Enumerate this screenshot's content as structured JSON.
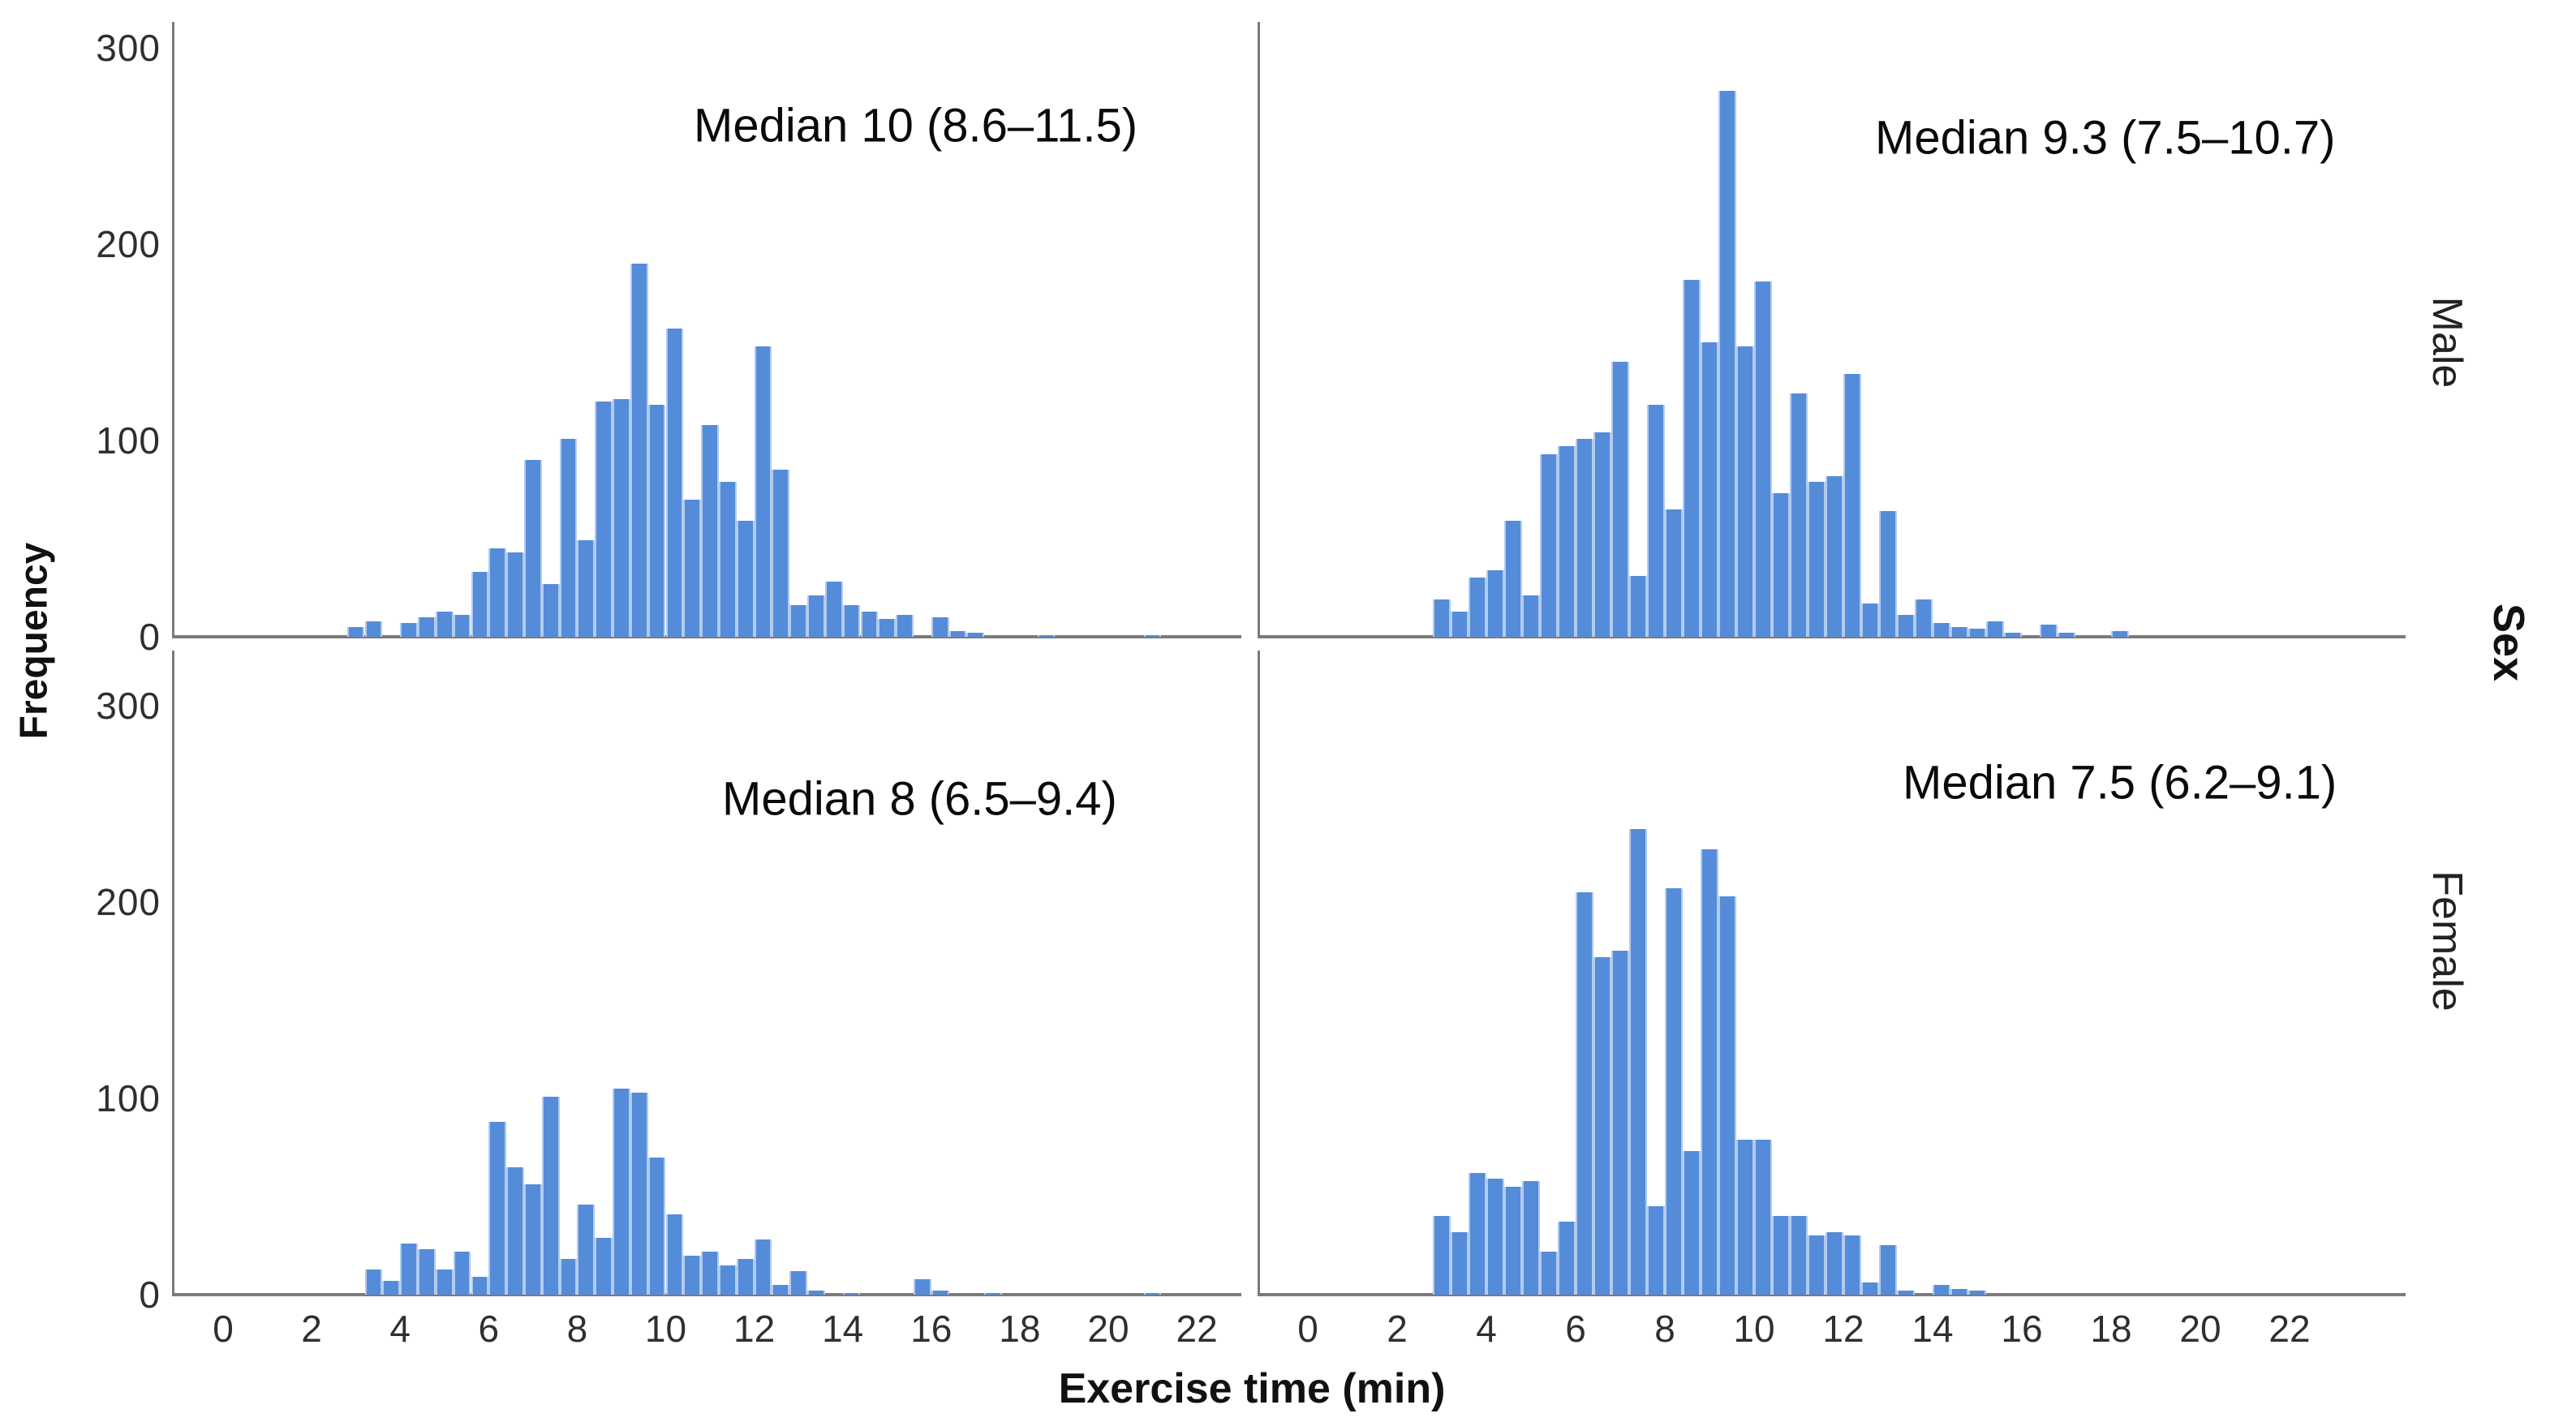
{
  "figure": {
    "background": "#ffffff",
    "bar_color": "#558CD9",
    "bar_divider_color": "rgba(255,255,255,0.55)",
    "axis_line_color": "#7b7b7b",
    "tick_text_color": "#2f2f2f"
  },
  "chart_data": {
    "type": "bar",
    "subtype": "faceted-histogram",
    "title": "",
    "xlabel": "Exercise time (min)",
    "ylabel": "Frequency",
    "facet_variable": "Sex",
    "row_labels": [
      "Male",
      "Female"
    ],
    "x_ticks": [
      0,
      2,
      4,
      6,
      8,
      10,
      12,
      14,
      16,
      18,
      20,
      22
    ],
    "y_ticks": [
      0,
      100,
      200,
      300
    ],
    "ylim": [
      0,
      313
    ],
    "xlim": [
      -1.1,
      23.2
    ],
    "bin_width": 0.4,
    "grid": "off",
    "legend": "none",
    "panels": [
      {
        "name": "top-left",
        "row": "Male",
        "annotation": "Median 10 (8.6–11.5)",
        "bins": [
          [
            3.0,
            5
          ],
          [
            3.4,
            8
          ],
          [
            4.2,
            7
          ],
          [
            4.6,
            10
          ],
          [
            5.0,
            13
          ],
          [
            5.4,
            11
          ],
          [
            5.8,
            33
          ],
          [
            6.2,
            45
          ],
          [
            6.6,
            43
          ],
          [
            7.0,
            90
          ],
          [
            7.4,
            27
          ],
          [
            7.8,
            101
          ],
          [
            8.2,
            49
          ],
          [
            8.6,
            120
          ],
          [
            9.0,
            121
          ],
          [
            9.4,
            190
          ],
          [
            9.8,
            118
          ],
          [
            10.2,
            157
          ],
          [
            10.6,
            70
          ],
          [
            11.0,
            108
          ],
          [
            11.4,
            79
          ],
          [
            11.8,
            59
          ],
          [
            12.2,
            148
          ],
          [
            12.6,
            85
          ],
          [
            13.0,
            16
          ],
          [
            13.4,
            21
          ],
          [
            13.8,
            28
          ],
          [
            14.2,
            16
          ],
          [
            14.6,
            13
          ],
          [
            15.0,
            9
          ],
          [
            15.4,
            11
          ],
          [
            16.2,
            10
          ],
          [
            16.6,
            3
          ],
          [
            17.0,
            2
          ],
          [
            18.6,
            1
          ],
          [
            21.0,
            1
          ]
        ]
      },
      {
        "name": "top-right",
        "row": "Male",
        "annotation": "Median 9.3 (7.5–10.7)",
        "bins": [
          [
            3.0,
            19
          ],
          [
            3.4,
            13
          ],
          [
            3.8,
            30
          ],
          [
            4.2,
            34
          ],
          [
            4.6,
            59
          ],
          [
            5.0,
            21
          ],
          [
            5.4,
            93
          ],
          [
            5.8,
            97
          ],
          [
            6.2,
            101
          ],
          [
            6.6,
            104
          ],
          [
            7.0,
            140
          ],
          [
            7.4,
            31
          ],
          [
            7.8,
            118
          ],
          [
            8.2,
            65
          ],
          [
            8.6,
            182
          ],
          [
            9.0,
            150
          ],
          [
            9.4,
            278
          ],
          [
            9.8,
            148
          ],
          [
            10.2,
            181
          ],
          [
            10.6,
            73
          ],
          [
            11.0,
            124
          ],
          [
            11.4,
            79
          ],
          [
            11.8,
            82
          ],
          [
            12.2,
            134
          ],
          [
            12.6,
            17
          ],
          [
            13.0,
            64
          ],
          [
            13.4,
            11
          ],
          [
            13.8,
            19
          ],
          [
            14.2,
            7
          ],
          [
            14.6,
            5
          ],
          [
            15.0,
            4
          ],
          [
            15.4,
            8
          ],
          [
            15.8,
            2
          ],
          [
            16.6,
            6
          ],
          [
            17.0,
            2
          ],
          [
            18.2,
            3
          ]
        ]
      },
      {
        "name": "bottom-left",
        "row": "Female",
        "annotation": "Median 8 (6.5–9.4)",
        "bins": [
          [
            3.4,
            13
          ],
          [
            3.8,
            7
          ],
          [
            4.2,
            26
          ],
          [
            4.6,
            23
          ],
          [
            5.0,
            13
          ],
          [
            5.4,
            22
          ],
          [
            5.8,
            9
          ],
          [
            6.2,
            88
          ],
          [
            6.6,
            65
          ],
          [
            7.0,
            56
          ],
          [
            7.4,
            101
          ],
          [
            7.8,
            18
          ],
          [
            8.2,
            46
          ],
          [
            8.6,
            29
          ],
          [
            9.0,
            105
          ],
          [
            9.4,
            103
          ],
          [
            9.8,
            70
          ],
          [
            10.2,
            41
          ],
          [
            10.6,
            20
          ],
          [
            11.0,
            22
          ],
          [
            11.4,
            15
          ],
          [
            11.8,
            18
          ],
          [
            12.2,
            28
          ],
          [
            12.6,
            5
          ],
          [
            13.0,
            12
          ],
          [
            13.4,
            2
          ],
          [
            14.2,
            1
          ],
          [
            15.8,
            8
          ],
          [
            16.2,
            2
          ],
          [
            17.4,
            1
          ],
          [
            21.0,
            1
          ]
        ]
      },
      {
        "name": "bottom-right",
        "row": "Female",
        "annotation": "Median 7.5 (6.2–9.1)",
        "bins": [
          [
            3.0,
            40
          ],
          [
            3.4,
            32
          ],
          [
            3.8,
            62
          ],
          [
            4.2,
            59
          ],
          [
            4.6,
            55
          ],
          [
            5.0,
            58
          ],
          [
            5.4,
            22
          ],
          [
            5.8,
            37
          ],
          [
            6.2,
            205
          ],
          [
            6.6,
            172
          ],
          [
            7.0,
            175
          ],
          [
            7.4,
            237
          ],
          [
            7.8,
            45
          ],
          [
            8.2,
            207
          ],
          [
            8.6,
            73
          ],
          [
            9.0,
            227
          ],
          [
            9.4,
            203
          ],
          [
            9.8,
            79
          ],
          [
            10.2,
            79
          ],
          [
            10.6,
            40
          ],
          [
            11.0,
            40
          ],
          [
            11.4,
            30
          ],
          [
            11.8,
            32
          ],
          [
            12.2,
            30
          ],
          [
            12.6,
            6
          ],
          [
            13.0,
            25
          ],
          [
            13.4,
            2
          ],
          [
            14.2,
            5
          ],
          [
            14.6,
            3
          ],
          [
            15.0,
            2
          ]
        ]
      }
    ]
  }
}
